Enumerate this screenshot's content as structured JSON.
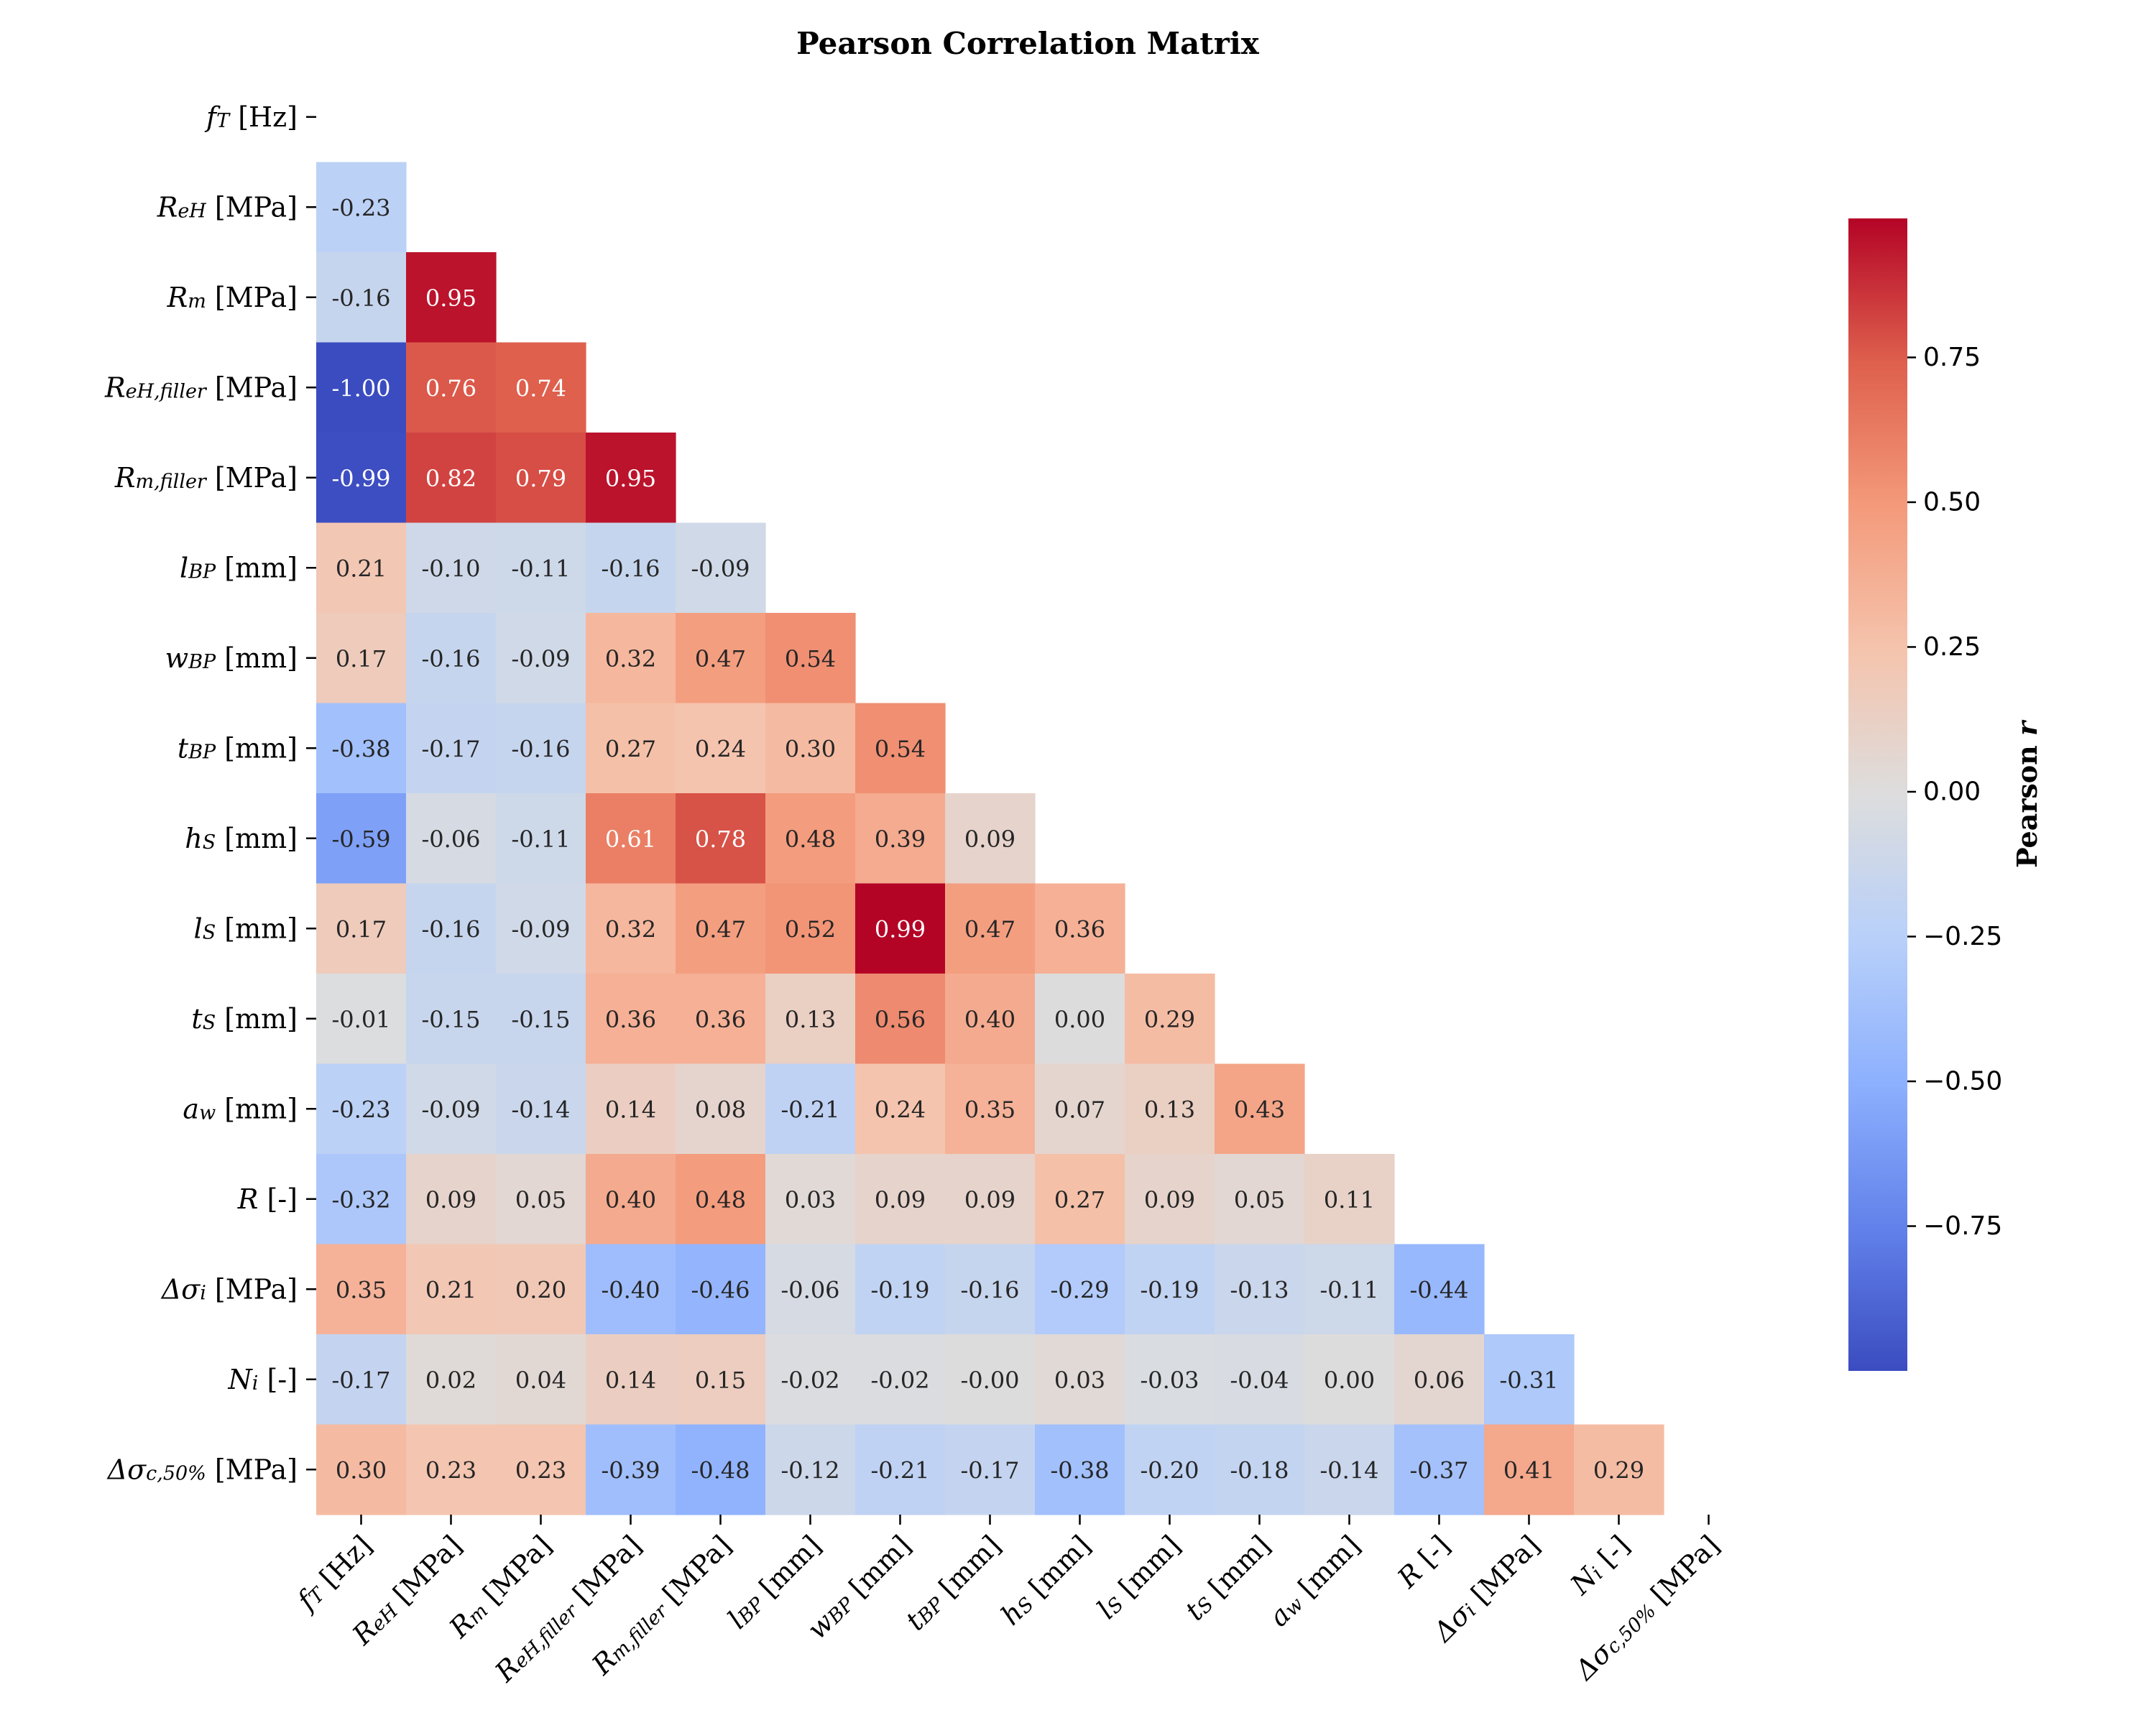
{
  "chart_data": {
    "type": "heatmap",
    "title": "Pearson Correlation Matrix",
    "mask": "upper-triangle-and-diagonal",
    "colormap": "coolwarm",
    "row_labels": [
      "f_T [Hz]",
      "R_eH [MPa]",
      "R_m [MPa]",
      "R_eH,filler [MPa]",
      "R_m,filler [MPa]",
      "l_BP [mm]",
      "w_BP [mm]",
      "t_BP [mm]",
      "h_S [mm]",
      "l_S [mm]",
      "t_S [mm]",
      "a_w [mm]",
      "R [-]",
      "Δσ_i [MPa]",
      "N_i [-]",
      "Δσ_c,50% [MPa]"
    ],
    "col_labels": [
      "f_T [Hz]",
      "R_eH [MPa]",
      "R_m [MPa]",
      "R_eH,filler [MPa]",
      "R_m,filler [MPa]",
      "l_BP [mm]",
      "w_BP [mm]",
      "t_BP [mm]",
      "h_S [mm]",
      "l_S [mm]",
      "t_S [mm]",
      "a_w [mm]",
      "R [-]",
      "Δσ_i [MPa]",
      "N_i [-]",
      "Δσ_c,50% [MPa]"
    ],
    "values": [
      [],
      [
        "-0.23"
      ],
      [
        "-0.16",
        "0.95"
      ],
      [
        "-1.00",
        "0.76",
        "0.74"
      ],
      [
        "-0.99",
        "0.82",
        "0.79",
        "0.95"
      ],
      [
        "0.21",
        "-0.10",
        "-0.11",
        "-0.16",
        "-0.09"
      ],
      [
        "0.17",
        "-0.16",
        "-0.09",
        "0.32",
        "0.47",
        "0.54"
      ],
      [
        "-0.38",
        "-0.17",
        "-0.16",
        "0.27",
        "0.24",
        "0.30",
        "0.54"
      ],
      [
        "-0.59",
        "-0.06",
        "-0.11",
        "0.61",
        "0.78",
        "0.48",
        "0.39",
        "0.09"
      ],
      [
        "0.17",
        "-0.16",
        "-0.09",
        "0.32",
        "0.47",
        "0.52",
        "0.99",
        "0.47",
        "0.36"
      ],
      [
        "-0.01",
        "-0.15",
        "-0.15",
        "0.36",
        "0.36",
        "0.13",
        "0.56",
        "0.40",
        "0.00",
        "0.29"
      ],
      [
        "-0.23",
        "-0.09",
        "-0.14",
        "0.14",
        "0.08",
        "-0.21",
        "0.24",
        "0.35",
        "0.07",
        "0.13",
        "0.43"
      ],
      [
        "-0.32",
        "0.09",
        "0.05",
        "0.40",
        "0.48",
        "0.03",
        "0.09",
        "0.09",
        "0.27",
        "0.09",
        "0.05",
        "0.11"
      ],
      [
        "0.35",
        "0.21",
        "0.20",
        "-0.40",
        "-0.46",
        "-0.06",
        "-0.19",
        "-0.16",
        "-0.29",
        "-0.19",
        "-0.13",
        "-0.11",
        "-0.44"
      ],
      [
        "-0.17",
        "0.02",
        "0.04",
        "0.14",
        "0.15",
        "-0.02",
        "-0.02",
        "-0.00",
        "0.03",
        "-0.03",
        "-0.04",
        "0.00",
        "0.06",
        "-0.31"
      ],
      [
        "0.30",
        "0.23",
        "0.23",
        "-0.39",
        "-0.48",
        "-0.12",
        "-0.21",
        "-0.17",
        "-0.38",
        "-0.20",
        "-0.18",
        "-0.14",
        "-0.37",
        "0.41",
        "0.29"
      ]
    ],
    "colorbar": {
      "label": "Pearson r",
      "range": [
        -1.0,
        0.99
      ],
      "ticks": [
        "−0.75",
        "−0.50",
        "−0.25",
        "0.00",
        "0.25",
        "0.50",
        "0.75"
      ]
    }
  }
}
